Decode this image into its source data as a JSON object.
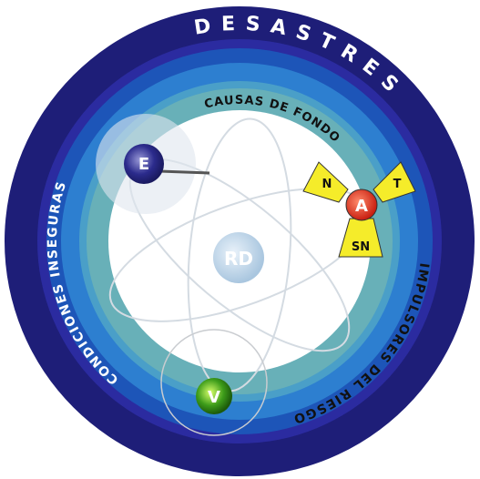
{
  "ring_labels": {
    "outer": "DESASTRES",
    "inner": "CAUSAS DE FONDO",
    "left": "CONDICIONES INSEGURAS",
    "right": "IMPULSORES DEL RIESGO"
  },
  "nodes": [
    {
      "label": "E"
    },
    {
      "label": "RD"
    },
    {
      "label": "V"
    }
  ],
  "hazard": {
    "center": "A",
    "blades": [
      "N",
      "T",
      "SN"
    ]
  }
}
